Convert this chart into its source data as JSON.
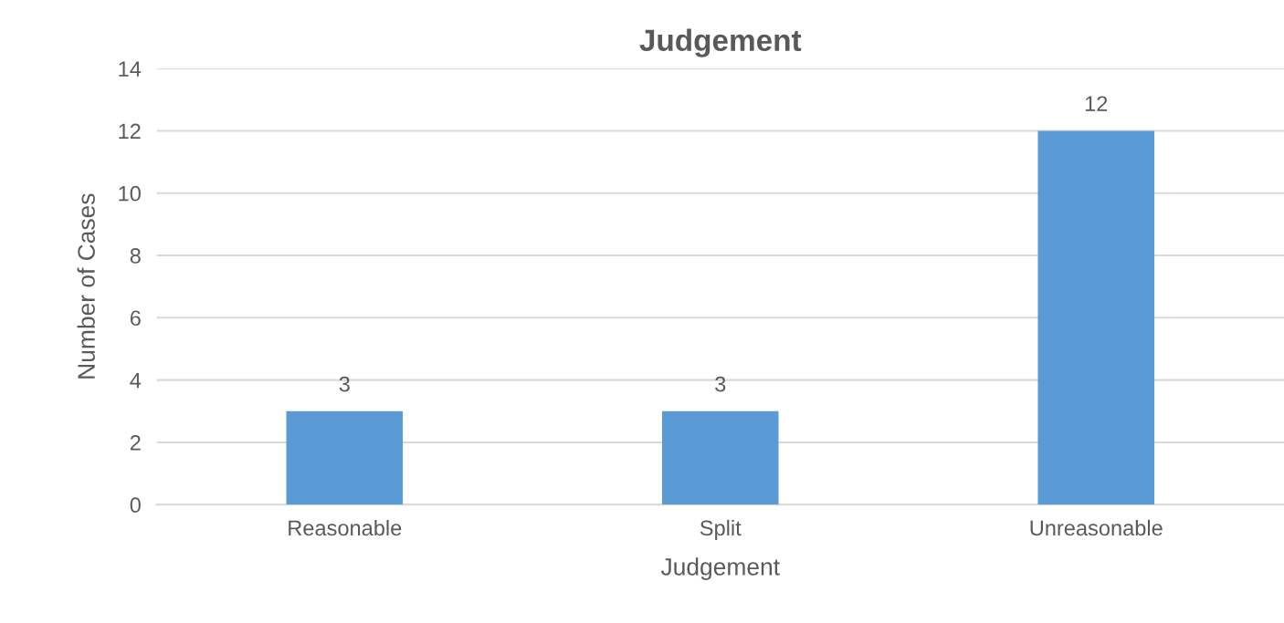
{
  "chart_data": {
    "type": "bar",
    "title": "Judgement",
    "xlabel": "Judgement",
    "ylabel": "Number of Cases",
    "categories": [
      "Reasonable",
      "Split",
      "Unreasonable"
    ],
    "values": [
      3,
      3,
      12
    ],
    "color": "#5b9bd5",
    "ylim": [
      0,
      14
    ],
    "yticks": [
      0,
      2,
      4,
      6,
      8,
      10,
      12,
      14
    ],
    "grid": "y",
    "data_labels": true,
    "legend": false
  }
}
